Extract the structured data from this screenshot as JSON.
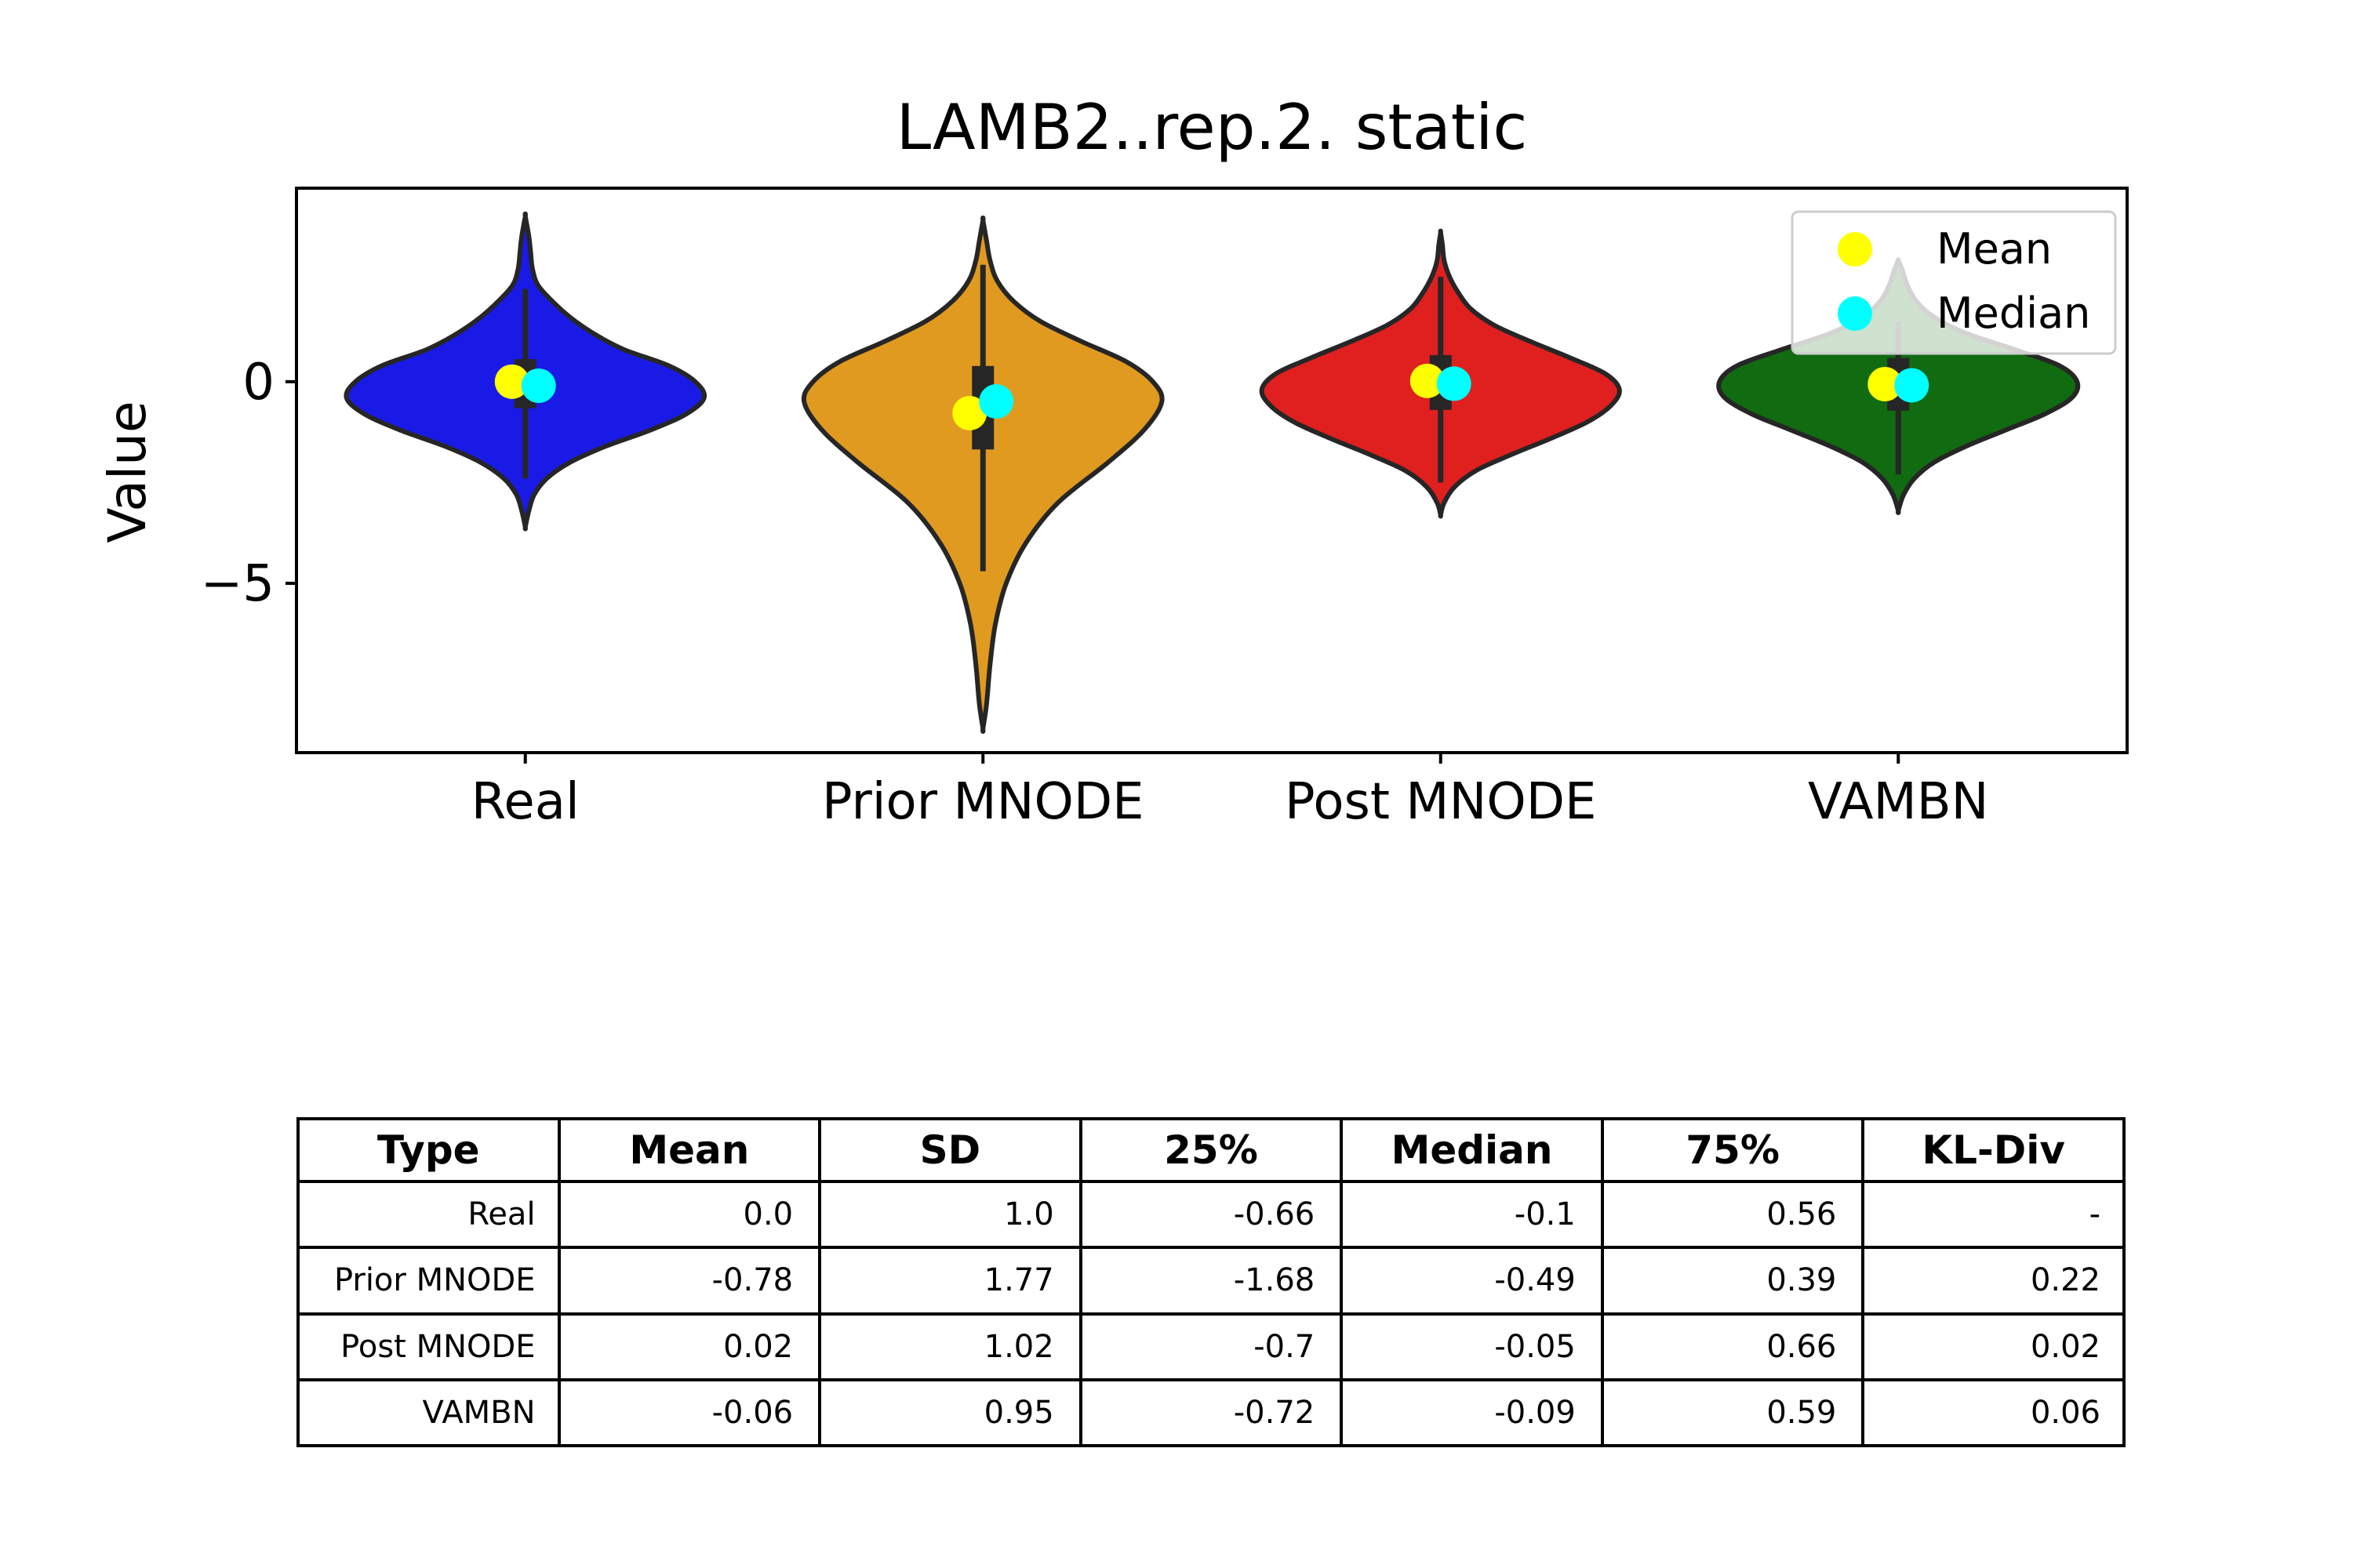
{
  "chart_data": {
    "type": "violin",
    "title": "LAMB2..rep.2. static",
    "xlabel": "",
    "ylabel": "Value",
    "ylim": [
      -9.2,
      4.8
    ],
    "yticks": [
      0,
      -5
    ],
    "ytick_labels": [
      "0",
      "−5"
    ],
    "categories": [
      "Real",
      "Prior MNODE",
      "Post MNODE",
      "VAMBN"
    ],
    "colors": [
      "#1a1ae6",
      "#e09a1f",
      "#e01f1f",
      "#116b11"
    ],
    "legend": {
      "placement": "top-right",
      "entries": [
        {
          "label": "Mean",
          "color": "#ffff00"
        },
        {
          "label": "Median",
          "color": "#00ffff"
        }
      ]
    },
    "series": [
      {
        "name": "Mean",
        "values": [
          0.0,
          -0.78,
          0.02,
          -0.06
        ]
      },
      {
        "name": "Median",
        "values": [
          -0.1,
          -0.49,
          -0.05,
          -0.09
        ]
      }
    ],
    "box": [
      {
        "q1": -0.66,
        "q3": 0.56,
        "whisker_low": -2.4,
        "whisker_high": 2.3
      },
      {
        "q1": -1.68,
        "q3": 0.39,
        "whisker_low": -4.7,
        "whisker_high": 2.9
      },
      {
        "q1": -0.7,
        "q3": 0.66,
        "whisker_low": -2.5,
        "whisker_high": 2.6
      },
      {
        "q1": -0.72,
        "q3": 0.59,
        "whisker_low": -2.3,
        "whisker_high": 1.5
      }
    ],
    "violins": [
      {
        "profile": [
          [
            -3.6,
            0
          ],
          [
            -3.2,
            0.02
          ],
          [
            -2.8,
            0.05
          ],
          [
            -2.4,
            0.12
          ],
          [
            -2.0,
            0.25
          ],
          [
            -1.6,
            0.45
          ],
          [
            -1.2,
            0.7
          ],
          [
            -0.8,
            0.9
          ],
          [
            -0.4,
            1.0
          ],
          [
            0.0,
            0.95
          ],
          [
            0.4,
            0.8
          ],
          [
            0.8,
            0.55
          ],
          [
            1.2,
            0.38
          ],
          [
            1.6,
            0.25
          ],
          [
            2.0,
            0.15
          ],
          [
            2.4,
            0.07
          ],
          [
            2.8,
            0.04
          ],
          [
            3.2,
            0.03
          ],
          [
            3.6,
            0.02
          ],
          [
            4.1,
            0
          ]
        ]
      },
      {
        "profile": [
          [
            -8.6,
            0
          ],
          [
            -8.0,
            0.02
          ],
          [
            -7.0,
            0.04
          ],
          [
            -6.0,
            0.07
          ],
          [
            -5.0,
            0.13
          ],
          [
            -4.0,
            0.24
          ],
          [
            -3.0,
            0.42
          ],
          [
            -2.0,
            0.7
          ],
          [
            -1.2,
            0.9
          ],
          [
            -0.5,
            1.0
          ],
          [
            0.0,
            0.95
          ],
          [
            0.5,
            0.8
          ],
          [
            1.0,
            0.55
          ],
          [
            1.5,
            0.32
          ],
          [
            2.0,
            0.17
          ],
          [
            2.5,
            0.08
          ],
          [
            3.0,
            0.04
          ],
          [
            3.5,
            0.02
          ],
          [
            4.0,
            0
          ]
        ]
      },
      {
        "profile": [
          [
            -3.3,
            0
          ],
          [
            -3.0,
            0.02
          ],
          [
            -2.6,
            0.08
          ],
          [
            -2.2,
            0.2
          ],
          [
            -1.8,
            0.4
          ],
          [
            -1.4,
            0.62
          ],
          [
            -1.0,
            0.82
          ],
          [
            -0.6,
            0.95
          ],
          [
            -0.2,
            1.0
          ],
          [
            0.2,
            0.92
          ],
          [
            0.6,
            0.72
          ],
          [
            1.0,
            0.5
          ],
          [
            1.4,
            0.3
          ],
          [
            1.8,
            0.17
          ],
          [
            2.2,
            0.1
          ],
          [
            2.6,
            0.05
          ],
          [
            3.0,
            0.02
          ],
          [
            3.4,
            0.01
          ],
          [
            3.7,
            0
          ]
        ]
      },
      {
        "profile": [
          [
            -3.2,
            0
          ],
          [
            -2.8,
            0.03
          ],
          [
            -2.4,
            0.09
          ],
          [
            -2.0,
            0.2
          ],
          [
            -1.6,
            0.38
          ],
          [
            -1.2,
            0.6
          ],
          [
            -0.8,
            0.82
          ],
          [
            -0.4,
            0.97
          ],
          [
            0.0,
            1.0
          ],
          [
            0.4,
            0.9
          ],
          [
            0.8,
            0.65
          ],
          [
            1.2,
            0.38
          ],
          [
            1.6,
            0.2
          ],
          [
            2.0,
            0.1
          ],
          [
            2.4,
            0.05
          ],
          [
            2.8,
            0.02
          ],
          [
            3.0,
            0
          ]
        ]
      }
    ]
  },
  "table": {
    "headers": [
      "Type",
      "Mean",
      "SD",
      "25%",
      "Median",
      "75%",
      "KL-Div"
    ],
    "rows": [
      [
        "Real",
        "0.0",
        "1.0",
        "-0.66",
        "-0.1",
        "0.56",
        "-"
      ],
      [
        "Prior MNODE",
        "-0.78",
        "1.77",
        "-1.68",
        "-0.49",
        "0.39",
        "0.22"
      ],
      [
        "Post MNODE",
        "0.02",
        "1.02",
        "-0.7",
        "-0.05",
        "0.66",
        "0.02"
      ],
      [
        "VAMBN",
        "-0.06",
        "0.95",
        "-0.72",
        "-0.09",
        "0.59",
        "0.06"
      ]
    ]
  }
}
